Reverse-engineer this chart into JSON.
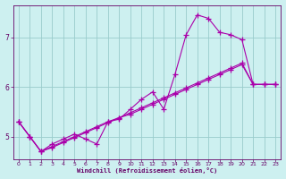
{
  "bg_color": "#cdf0f0",
  "line_color": "#aa00aa",
  "grid_color": "#99cccc",
  "axis_color": "#660066",
  "text_color": "#660066",
  "xlim": [
    -0.5,
    23.5
  ],
  "ylim": [
    4.55,
    7.65
  ],
  "yticks": [
    5,
    6,
    7
  ],
  "xticks": [
    0,
    1,
    2,
    3,
    4,
    5,
    6,
    7,
    8,
    9,
    10,
    11,
    12,
    13,
    14,
    15,
    16,
    17,
    18,
    19,
    20,
    21,
    22,
    23
  ],
  "xlabel": "Windchill (Refroidissement éolien,°C)",
  "line1_x": [
    0,
    1,
    2,
    3,
    4,
    5,
    6,
    7,
    8,
    9,
    10,
    11,
    12,
    13,
    14,
    15,
    16,
    17,
    18,
    19,
    20,
    21,
    22,
    23
  ],
  "line1_y": [
    5.3,
    5.0,
    4.7,
    4.85,
    4.95,
    5.05,
    4.95,
    4.85,
    5.3,
    5.35,
    5.55,
    5.75,
    5.9,
    5.55,
    6.25,
    7.05,
    7.45,
    7.38,
    7.1,
    7.05,
    6.95,
    6.05,
    6.05,
    6.05
  ],
  "line2_x": [
    0,
    1,
    2,
    3,
    4,
    5,
    6,
    7,
    8,
    9,
    10,
    11,
    12,
    13,
    14,
    15,
    16,
    17,
    18,
    19,
    20,
    21,
    22,
    23
  ],
  "line2_y": [
    5.3,
    5.0,
    4.7,
    4.8,
    4.9,
    5.0,
    5.1,
    5.2,
    5.3,
    5.38,
    5.45,
    5.55,
    5.65,
    5.75,
    5.85,
    5.95,
    6.05,
    6.15,
    6.25,
    6.35,
    6.45,
    6.05,
    6.05,
    6.05
  ],
  "line3_x": [
    0,
    1,
    2,
    3,
    4,
    5,
    6,
    7,
    8,
    9,
    10,
    11,
    12,
    13,
    14,
    15,
    16,
    17,
    18,
    19,
    20,
    21,
    22,
    23
  ],
  "line3_y": [
    5.3,
    5.0,
    4.7,
    4.78,
    4.88,
    4.98,
    5.08,
    5.18,
    5.28,
    5.38,
    5.48,
    5.58,
    5.68,
    5.78,
    5.88,
    5.98,
    6.08,
    6.18,
    6.28,
    6.38,
    6.48,
    6.05,
    6.05,
    6.05
  ],
  "marker": "+",
  "markersize": 4,
  "linewidth": 0.8
}
